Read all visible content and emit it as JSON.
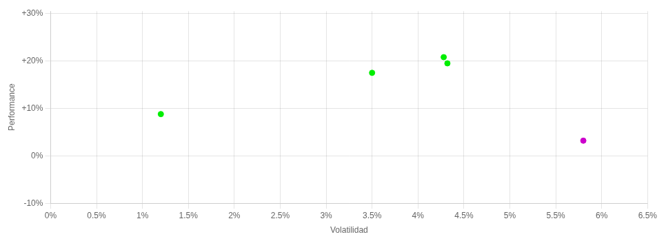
{
  "chart_data": {
    "type": "scatter",
    "xlabel": "Volatilidad",
    "ylabel": "Performance",
    "x": [
      0.012,
      0.035,
      0.0428,
      0.0432,
      0.058
    ],
    "values": [
      0.088,
      0.175,
      0.208,
      0.195,
      0.032
    ],
    "colors": [
      "#00ee00",
      "#00ee00",
      "#00ee00",
      "#00ee00",
      "#cc00cc"
    ],
    "xlim": [
      0.0,
      0.065
    ],
    "ylim": [
      -0.1,
      0.305
    ],
    "xticks": [
      {
        "value": 0.0,
        "label": "0%"
      },
      {
        "value": 0.005,
        "label": "0.5%"
      },
      {
        "value": 0.01,
        "label": "1%"
      },
      {
        "value": 0.015,
        "label": "1.5%"
      },
      {
        "value": 0.02,
        "label": "2%"
      },
      {
        "value": 0.025,
        "label": "2.5%"
      },
      {
        "value": 0.03,
        "label": "3%"
      },
      {
        "value": 0.035,
        "label": "3.5%"
      },
      {
        "value": 0.04,
        "label": "4%"
      },
      {
        "value": 0.045,
        "label": "4.5%"
      },
      {
        "value": 0.05,
        "label": "5%"
      },
      {
        "value": 0.055,
        "label": "5.5%"
      },
      {
        "value": 0.06,
        "label": "6%"
      },
      {
        "value": 0.065,
        "label": "6.5%"
      }
    ],
    "yticks": [
      {
        "value": -0.1,
        "label": "-10%"
      },
      {
        "value": 0.0,
        "label": "0%"
      },
      {
        "value": 0.1,
        "label": "+10%"
      },
      {
        "value": 0.2,
        "label": "+20%"
      },
      {
        "value": 0.3,
        "label": "+30%"
      }
    ],
    "grid": true
  }
}
